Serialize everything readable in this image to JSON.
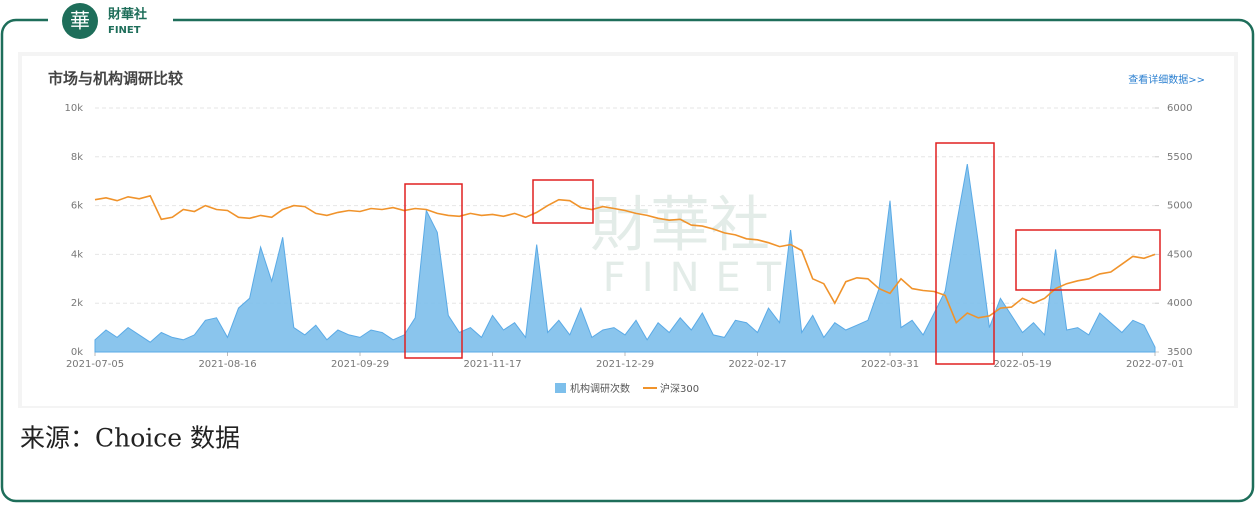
{
  "header": {
    "logo_name": "財華社",
    "logo_en": "FINET"
  },
  "watermark": {
    "name": "財華社",
    "en": "FINET"
  },
  "chart_data": {
    "type": "combo",
    "title": "市场与机构调研比较",
    "link": "查看详细数据>>",
    "categories": [
      "2021-07-05",
      null,
      null,
      null,
      null,
      null,
      null,
      null,
      null,
      null,
      null,
      null,
      "2021-08-16",
      null,
      null,
      null,
      null,
      null,
      null,
      null,
      null,
      null,
      null,
      null,
      "2021-09-29",
      null,
      null,
      null,
      null,
      null,
      null,
      null,
      null,
      null,
      null,
      null,
      "2021-11-17",
      null,
      null,
      null,
      null,
      null,
      null,
      null,
      null,
      null,
      null,
      null,
      "2021-12-29",
      null,
      null,
      null,
      null,
      null,
      null,
      null,
      null,
      null,
      null,
      null,
      "2022-02-17",
      null,
      null,
      null,
      null,
      null,
      null,
      null,
      null,
      null,
      null,
      null,
      "2022-03-31",
      null,
      null,
      null,
      null,
      null,
      null,
      null,
      null,
      null,
      null,
      null,
      "2022-05-19",
      null,
      null,
      null,
      null,
      null,
      null,
      null,
      null,
      null,
      null,
      null,
      "2022-07-01"
    ],
    "ylim": [
      0,
      10000
    ],
    "yticks": [
      {
        "value": 0,
        "label": "0k"
      },
      {
        "value": 2000,
        "label": "2k"
      },
      {
        "value": 4000,
        "label": "4k"
      },
      {
        "value": 6000,
        "label": "6k"
      },
      {
        "value": 8000,
        "label": "8k"
      },
      {
        "value": 10000,
        "label": "10k"
      }
    ],
    "y2lim": [
      3500,
      6000
    ],
    "y2ticks": [
      3500,
      4000,
      4500,
      5000,
      5500,
      6000
    ],
    "grid": true,
    "legend": "bottom",
    "series": [
      {
        "name": "机构调研次数",
        "type": "area",
        "color": "#7dbfeb",
        "values": [
          500,
          900,
          600,
          1000,
          700,
          400,
          800,
          600,
          500,
          700,
          1300,
          1400,
          600,
          1800,
          2200,
          4300,
          2900,
          4700,
          1000,
          700,
          1100,
          500,
          900,
          700,
          600,
          900,
          800,
          500,
          700,
          1400,
          5800,
          4900,
          1500,
          800,
          1000,
          600,
          1500,
          900,
          1200,
          600,
          4400,
          800,
          1300,
          700,
          1800,
          600,
          900,
          1000,
          700,
          1300,
          500,
          1200,
          800,
          1400,
          900,
          1600,
          700,
          600,
          1300,
          1200,
          800,
          1800,
          1200,
          5000,
          800,
          1500,
          600,
          1200,
          900,
          1100,
          1300,
          2600,
          6200,
          1000,
          1300,
          700,
          1600,
          2500,
          5200,
          7700,
          4500,
          1000,
          2200,
          1500,
          800,
          1200,
          700,
          4200,
          900,
          1000,
          700,
          1600,
          1200,
          800,
          1300,
          1100,
          200
        ]
      },
      {
        "name": "沪深300",
        "type": "line",
        "axis": "y2",
        "color": "#f0932b",
        "values": [
          5060,
          5080,
          5050,
          5090,
          5070,
          5100,
          4860,
          4880,
          4960,
          4940,
          5000,
          4960,
          4950,
          4880,
          4870,
          4900,
          4880,
          4960,
          5000,
          4990,
          4920,
          4900,
          4930,
          4950,
          4940,
          4970,
          4960,
          4980,
          4950,
          4970,
          4960,
          4920,
          4900,
          4890,
          4920,
          4900,
          4910,
          4890,
          4920,
          4880,
          4930,
          5000,
          5060,
          5050,
          4980,
          4960,
          4990,
          4970,
          4950,
          4920,
          4900,
          4870,
          4850,
          4860,
          4800,
          4790,
          4760,
          4720,
          4700,
          4660,
          4650,
          4620,
          4580,
          4600,
          4540,
          4250,
          4200,
          4000,
          4220,
          4260,
          4250,
          4150,
          4100,
          4250,
          4150,
          4130,
          4120,
          4080,
          3800,
          3900,
          3850,
          3870,
          3950,
          3960,
          4050,
          4000,
          4050,
          4150,
          4200,
          4230,
          4250,
          4300,
          4320,
          4400,
          4480,
          4460,
          4500
        ]
      }
    ]
  },
  "caption": "来源：Choice 数据"
}
